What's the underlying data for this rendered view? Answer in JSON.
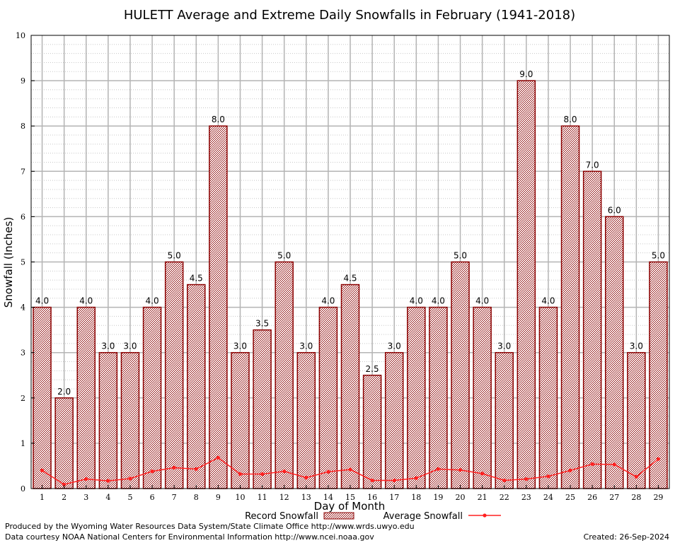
{
  "chart_data": {
    "type": "bar",
    "title": "HULETT Average and Extreme Daily Snowfalls in February (1941-2018)",
    "xlabel": "Day of Month",
    "ylabel": "Snowfall (Inches)",
    "ylim": [
      0,
      10
    ],
    "yticks": [
      "0",
      "1",
      "2",
      "3",
      "4",
      "5",
      "6",
      "7",
      "8",
      "9",
      "10"
    ],
    "categories": [
      "1",
      "2",
      "3",
      "4",
      "5",
      "6",
      "7",
      "8",
      "9",
      "10",
      "11",
      "12",
      "13",
      "14",
      "15",
      "16",
      "17",
      "18",
      "19",
      "20",
      "21",
      "22",
      "23",
      "24",
      "25",
      "26",
      "27",
      "28",
      "29"
    ],
    "grid": true,
    "legend_position": "bottom",
    "series": [
      {
        "name": "Record Snowfall",
        "type": "bar",
        "color": "#8b0000",
        "values": [
          4.0,
          2.0,
          4.0,
          3.0,
          3.0,
          4.0,
          5.0,
          4.5,
          8.0,
          3.0,
          3.5,
          5.0,
          3.0,
          4.0,
          4.5,
          2.5,
          3.0,
          4.0,
          4.0,
          5.0,
          4.0,
          3.0,
          9.0,
          4.0,
          8.0,
          7.0,
          6.0,
          3.0,
          5.0
        ],
        "labels": [
          "4.0",
          "2.0",
          "4.0",
          "3.0",
          "3.0",
          "4.0",
          "5.0",
          "4.5",
          "8.0",
          "3.0",
          "3.5",
          "5.0",
          "3.0",
          "4.0",
          "4.5",
          "2.5",
          "3.0",
          "4.0",
          "4.0",
          "5.0",
          "4.0",
          "3.0",
          "9.0",
          "4.0",
          "8.0",
          "7.0",
          "6.0",
          "3.0",
          "5.0"
        ]
      },
      {
        "name": "Average Snowfall",
        "type": "line",
        "color": "#ff2020",
        "values": [
          0.4,
          0.09,
          0.21,
          0.17,
          0.22,
          0.38,
          0.46,
          0.43,
          0.68,
          0.32,
          0.32,
          0.38,
          0.24,
          0.37,
          0.42,
          0.18,
          0.18,
          0.23,
          0.43,
          0.41,
          0.33,
          0.18,
          0.21,
          0.27,
          0.4,
          0.54,
          0.53,
          0.26,
          0.65
        ]
      }
    ]
  },
  "footer": {
    "produced_by": "Produced by the Wyoming Water Resources Data System/State Climate Office http://www.wrds.uwyo.edu",
    "courtesy": "Data courtesy NOAA National Centers for Environmental Information http://www.ncei.noaa.gov",
    "created": "Created:  26-Sep-2024"
  }
}
